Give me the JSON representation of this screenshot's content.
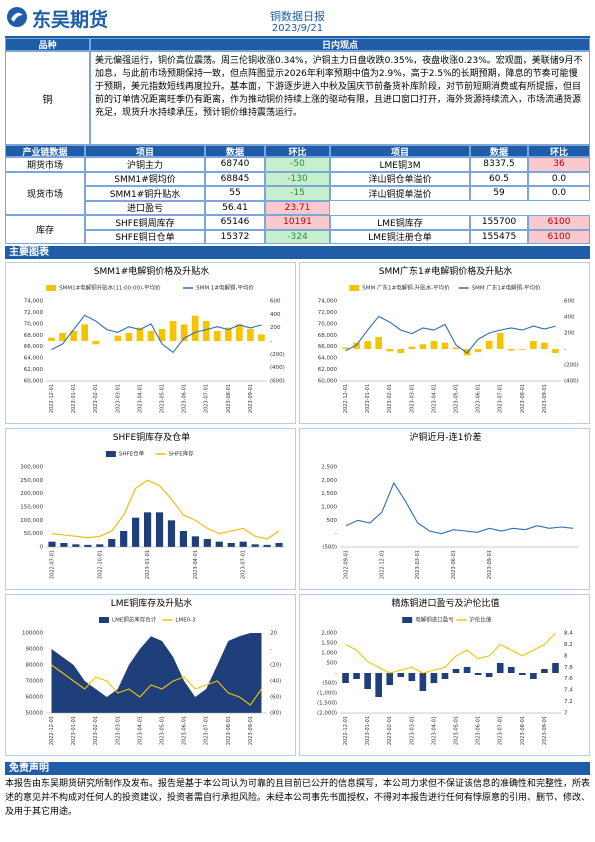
{
  "header": {
    "company": "东吴期货",
    "title": "铜数据日报",
    "date": "2023/9/21"
  },
  "view": {
    "headers": [
      "品种",
      "日内观点"
    ],
    "product": "铜",
    "text": "美元偏强运行，铜价高位震荡。周三伦铜收涨0.34%，沪铜主力日盘收跌0.35%，夜盘收涨0.23%。宏观面，美联储9月不加息，与此前市场预期保持一致，但点阵图显示2026年利率预期中值为2.9%，高于2.5%的长期预期，降息的节奏可能慢于预期，美元指数短线再度拉升。基本面，下游逐步进入中秋及国庆节前备货补库阶段，对节前短期消费或有所提振，但目前的订单情况距离旺季仍有距离，作为推动铜价持续上涨的驱动有限，且进口窗口打开，海外货源持续流入，市场流通货源充足，现货升水持续承压，预计铜价维持震荡运行。"
  },
  "chain": {
    "headers": [
      "产业链数据",
      "项目",
      "数据",
      "环比",
      "项目",
      "数据",
      "环比"
    ],
    "groups": [
      {
        "name": "期货市场",
        "rows": [
          [
            "沪铜主力",
            "68740",
            "-50",
            "LME铜3M",
            "8337.5",
            "36"
          ]
        ]
      },
      {
        "name": "现货市场",
        "rows": [
          [
            "SMM1#铜均价",
            "68845",
            "-130",
            "洋山铜仓单溢价",
            "60.5",
            "0.0"
          ],
          [
            "SMM1#铜升贴水",
            "55",
            "-15",
            "洋山铜提单溢价",
            "59",
            "0.0"
          ],
          [
            "进口盈亏",
            "56.41",
            "23.71"
          ]
        ]
      },
      {
        "name": "库存",
        "rows": [
          [
            "SHFE铜周库存",
            "65146",
            "10191",
            "LME铜库存",
            "155700",
            "6100"
          ],
          [
            "SHFE铜日仓单",
            "15372",
            "-324",
            "LME铜注册仓单",
            "155475",
            "6100"
          ]
        ]
      }
    ]
  },
  "section_charts": "主要图表",
  "chart_data": [
    {
      "type": "combo",
      "title": "SMM1#电解铜价格及升贴水",
      "categories": [
        "2022-12-01",
        null,
        "2023-01-01",
        null,
        "2023-02-01",
        null,
        "2023-03-01",
        null,
        "2023-04-01",
        null,
        "2023-05-01",
        null,
        "2023-06-01",
        null,
        "2023-07-01",
        null,
        "2023-08-01",
        null,
        "2023-09-01",
        null
      ],
      "series": [
        {
          "name": "SMM1#电解铜升贴水(11:00:00)-平均价",
          "type": "bar",
          "axis": "y2",
          "color": "#f5c400",
          "values": [
            50,
            120,
            150,
            250,
            -50,
            0,
            80,
            120,
            200,
            150,
            180,
            300,
            250,
            380,
            300,
            150,
            200,
            250,
            180,
            100
          ]
        },
        {
          "name": "SMM 1#电解铜-平均价",
          "type": "line",
          "color": "#2e6db5",
          "values": [
            65500,
            66500,
            69000,
            71500,
            70500,
            69000,
            68500,
            69500,
            69000,
            70000,
            66500,
            65000,
            67500,
            68500,
            69000,
            69500,
            69000,
            69800,
            69300,
            69800
          ]
        }
      ],
      "ylim": [
        60000,
        74000
      ],
      "yticks": [
        {
          "value": 60000,
          "label": "60,000"
        },
        {
          "value": 62000,
          "label": "62,000"
        },
        {
          "value": 64000,
          "label": "64,000"
        },
        {
          "value": 66000,
          "label": "66,000"
        },
        {
          "value": 68000,
          "label": "68,000"
        },
        {
          "value": 70000,
          "label": "70,000"
        },
        {
          "value": 72000,
          "label": "72,000"
        },
        {
          "value": 74000,
          "label": "74,000"
        }
      ],
      "y2lim": [
        -600,
        600
      ],
      "y2ticks": [
        {
          "value": -600,
          "label": "(600)"
        },
        {
          "value": -400,
          "label": "(400)"
        },
        {
          "value": -200,
          "label": "(200)"
        },
        {
          "value": 0,
          "label": "-"
        },
        200,
        400,
        600
      ]
    },
    {
      "type": "combo",
      "title": "SMM广东1#电解铜价格及升贴水",
      "categories": [
        "2022-12-01",
        null,
        "2023-01-01",
        null,
        "2023-02-01",
        null,
        "2023-03-01",
        null,
        "2023-04-01",
        null,
        "2023-05-01",
        null,
        "2023-06-01",
        null,
        "2023-07-01",
        null,
        "2023-08-01",
        null,
        "2023-09-01",
        null
      ],
      "series": [
        {
          "name": "SMM 广东1#电解铜-升贴水-平均价",
          "type": "bar",
          "axis": "y2",
          "color": "#f5c400",
          "values": [
            20,
            80,
            100,
            150,
            -30,
            -50,
            30,
            60,
            100,
            80,
            20,
            -80,
            -40,
            100,
            200,
            -20,
            -10,
            100,
            80,
            -50
          ]
        },
        {
          "name": "SMM 广东1#电解铜-平均价",
          "type": "line",
          "color": "#2e6db5",
          "values": [
            65300,
            66300,
            68900,
            71300,
            70300,
            68900,
            68300,
            69300,
            68900,
            69900,
            66300,
            64900,
            67300,
            68400,
            68900,
            69300,
            68900,
            69600,
            69100,
            69600
          ]
        }
      ],
      "ylim": [
        60000,
        74000
      ],
      "yticks": [
        {
          "value": 60000,
          "label": "60,000"
        },
        {
          "value": 62000,
          "label": "62,000"
        },
        {
          "value": 64000,
          "label": "64,000"
        },
        {
          "value": 66000,
          "label": "66,000"
        },
        {
          "value": 68000,
          "label": "68,000"
        },
        {
          "value": 70000,
          "label": "70,000"
        },
        {
          "value": 72000,
          "label": "72,000"
        },
        {
          "value": 74000,
          "label": "74,000"
        }
      ],
      "y2lim": [
        -400,
        600
      ],
      "y2ticks": [
        {
          "value": -400,
          "label": "(400)"
        },
        {
          "value": -200,
          "label": "(200)"
        },
        {
          "value": 0,
          "label": "-"
        },
        200,
        400,
        600
      ]
    },
    {
      "type": "combo",
      "title": "SHFE铜库存及仓单",
      "categories": [
        "2022-07-01",
        null,
        null,
        null,
        "2022-10-01",
        null,
        null,
        null,
        "2023-01-01",
        null,
        null,
        null,
        "2023-04-01",
        null,
        null,
        null,
        "2023-07-01",
        null,
        null,
        null
      ],
      "series": [
        {
          "name": "SHFE仓单",
          "type": "bar",
          "color": "#1f3f7a",
          "values": [
            20000,
            15000,
            10000,
            8000,
            10000,
            30000,
            60000,
            110000,
            130000,
            130000,
            100000,
            60000,
            40000,
            30000,
            20000,
            15000,
            20000,
            10000,
            8000,
            15000
          ]
        },
        {
          "name": "SHFE库存",
          "type": "line",
          "color": "#f5b800",
          "values": [
            50000,
            45000,
            40000,
            35000,
            40000,
            60000,
            120000,
            220000,
            250000,
            230000,
            180000,
            120000,
            100000,
            70000,
            50000,
            60000,
            70000,
            40000,
            30000,
            60000
          ]
        }
      ],
      "ylim": [
        0,
        300000
      ],
      "yticks": [
        0,
        {
          "value": 50000,
          "label": "50,000"
        },
        {
          "value": 100000,
          "label": "100,000"
        },
        {
          "value": 150000,
          "label": "150,000"
        },
        {
          "value": 200000,
          "label": "200,000"
        },
        {
          "value": 250000,
          "label": "250,000"
        },
        {
          "value": 300000,
          "label": "300,000"
        }
      ]
    },
    {
      "type": "combo",
      "title": "沪铜近月-连1价差",
      "categories": [
        "2022-09-01",
        null,
        null,
        "2022-12-01",
        null,
        null,
        "2023-03-01",
        null,
        null,
        "2023-06-01",
        null,
        null,
        "2023-09-01",
        null,
        null,
        null,
        null,
        null,
        null,
        null
      ],
      "series": [
        {
          "type": "line",
          "color": "#2e6db5",
          "values": [
            300,
            500,
            400,
            800,
            1900,
            1200,
            400,
            100,
            0,
            150,
            100,
            50,
            200,
            100,
            200,
            150,
            300,
            200,
            250,
            200
          ]
        }
      ],
      "ylim": [
        -500,
        2500
      ],
      "yticks": [
        {
          "value": -500,
          "label": "(500)"
        },
        {
          "value": 0,
          "label": "-"
        },
        500,
        {
          "value": 1000,
          "label": "1,000"
        },
        {
          "value": 1500,
          "label": "1,500"
        },
        {
          "value": 2000,
          "label": "2,000"
        },
        {
          "value": 2500,
          "label": "2,500"
        }
      ]
    },
    {
      "type": "combo",
      "title": "LME铜库存及升贴水",
      "categories": [
        "2022-12-01",
        null,
        "2023-01-01",
        null,
        "2023-02-01",
        null,
        "2023-03-01",
        null,
        "2023-04-01",
        null,
        "2023-05-01",
        null,
        "2023-06-01",
        null,
        "2023-07-01",
        null,
        "2023-08-01",
        null,
        "2023-09-01",
        null
      ],
      "series": [
        {
          "name": "LME铜总库存合计",
          "type": "area",
          "color": "#1f3f7a",
          "values": [
            90000,
            85000,
            80000,
            70000,
            65000,
            60000,
            65000,
            80000,
            90000,
            98000,
            95000,
            85000,
            70000,
            60000,
            65000,
            80000,
            95000,
            98000,
            100000,
            100000
          ]
        },
        {
          "name": "LME0-3",
          "type": "line",
          "axis": "y2",
          "color": "#f5c400",
          "values": [
            -20,
            -30,
            -40,
            -50,
            -35,
            -40,
            -55,
            -50,
            -60,
            -45,
            -50,
            -40,
            -35,
            -50,
            -45,
            -40,
            -55,
            -60,
            -70,
            -50
          ]
        }
      ],
      "ylim": [
        50000,
        100000
      ],
      "yticks": [
        {
          "value": 50000,
          "label": "50000"
        },
        {
          "value": 60000,
          "label": "60000"
        },
        {
          "value": 70000,
          "label": "70000"
        },
        {
          "value": 80000,
          "label": "80000"
        },
        {
          "value": 90000,
          "label": "90000"
        },
        {
          "value": 100000,
          "label": "100000"
        }
      ],
      "y2lim": [
        -80,
        20
      ],
      "y2ticks": [
        {
          "value": -80,
          "label": "(80)"
        },
        {
          "value": -60,
          "label": "(60)"
        },
        {
          "value": -40,
          "label": "(40)"
        },
        {
          "value": -20,
          "label": "(20)"
        },
        {
          "value": 0,
          "label": "-"
        },
        20
      ]
    },
    {
      "type": "combo",
      "title": "精炼铜进口盈亏及沪伦比值",
      "categories": [
        "2022-12-01",
        null,
        "2023-01-01",
        null,
        "2023-02-01",
        null,
        "2023-03-01",
        null,
        "2023-04-01",
        null,
        "2023-05-01",
        null,
        "2023-06-01",
        null,
        "2023-07-01",
        null,
        "2023-08-01",
        null,
        "2023-09-01",
        null
      ],
      "series": [
        {
          "name": "电解铜进口盈亏",
          "type": "bar",
          "color": "#1f3f7a",
          "values": [
            -500,
            -300,
            -800,
            -1200,
            -600,
            -200,
            -400,
            -900,
            -500,
            -300,
            200,
            300,
            -100,
            -200,
            500,
            300,
            -100,
            -300,
            200,
            500
          ]
        },
        {
          "name": "沪伦比值",
          "type": "line",
          "axis": "y2",
          "color": "#f5c400",
          "values": [
            8.2,
            8.1,
            7.9,
            7.8,
            7.7,
            7.75,
            7.8,
            7.7,
            7.75,
            7.8,
            8.0,
            8.1,
            7.95,
            8.0,
            8.2,
            8.1,
            8.0,
            8.1,
            8.2,
            8.4
          ]
        }
      ],
      "ylim": [
        -2000,
        2000
      ],
      "yticks": [
        {
          "value": -2000,
          "label": "(2,000)"
        },
        {
          "value": -1500,
          "label": "(1,500)"
        },
        {
          "value": -1000,
          "label": "(1,000)"
        },
        {
          "value": -500,
          "label": "(500)"
        },
        {
          "value": 0,
          "label": "-"
        },
        500,
        {
          "value": 1000,
          "label": "1,000"
        },
        {
          "value": 1500,
          "label": "1,500"
        },
        {
          "value": 2000,
          "label": "2,000"
        }
      ],
      "y2lim": [
        7,
        8.4
      ],
      "y2ticks": [
        7,
        7.2,
        7.4,
        7.6,
        7.8,
        8,
        8.2,
        8.4
      ]
    }
  ],
  "disclaimer": {
    "title": "免责声明",
    "text": "本报告由东吴期货研究所制作及发布。报告是基于本公司认为可靠的且目前已公开的信息撰写，本公司力求但不保证该信息的准确性和完整性，所表述的意见并不构成对任何人的投资建议，投资者需自行承担风险。未经本公司事先书面授权，不得对本报告进行任何有悖原意的引用、删节、修改、及用于其它用途。"
  }
}
